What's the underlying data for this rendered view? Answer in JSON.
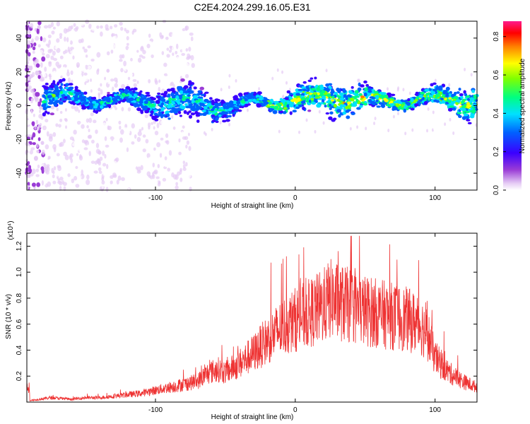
{
  "title": "C2E4.2024.299.16.05.E31",
  "chart_data": [
    {
      "type": "heatmap",
      "xlabel": "Height of straight line (km)",
      "ylabel": "Frequency (Hz)",
      "xlim": [
        -192,
        130
      ],
      "ylim": [
        -50,
        50
      ],
      "xticks": [
        -100,
        0,
        100
      ],
      "yticks": [
        -40,
        -20,
        0,
        20,
        40
      ],
      "colorbar": {
        "label": "Normalized spectral amplitude",
        "range": [
          0,
          0.88
        ],
        "ticks": [
          "0.0",
          "0.2",
          "0.4",
          "0.6",
          "0.8"
        ],
        "colormap": "rainbow (white-purple-blue-cyan-green-yellow-red-magenta)"
      },
      "description_trace": {
        "x": [
          -175,
          -150,
          -125,
          -100,
          -75,
          -50,
          -25,
          0,
          25,
          50,
          75,
          100,
          125
        ],
        "center_freq": [
          5,
          4,
          3,
          2,
          1,
          -1,
          2,
          3,
          5,
          3,
          3,
          4,
          3
        ]
      }
    },
    {
      "type": "line",
      "xlabel": "Height of straight line (km)",
      "ylabel": "SNR (10 * v/v)",
      "y_multiplier": "(x10⁴)",
      "xlim": [
        -192,
        130
      ],
      "ylim": [
        0,
        1.3
      ],
      "xticks": [
        -100,
        0,
        100
      ],
      "yticks": [
        "0.2",
        "0.4",
        "0.6",
        "0.8",
        "1.0",
        "1.2"
      ],
      "series": [
        {
          "color": "#ee3333",
          "x": [
            -190,
            -175,
            -160,
            -150,
            -140,
            -130,
            -120,
            -110,
            -100,
            -90,
            -80,
            -70,
            -62,
            -55,
            -50,
            -40,
            -30,
            -20,
            -10,
            0,
            10,
            20,
            25,
            30,
            40,
            50,
            60,
            70,
            80,
            90,
            95,
            100,
            110,
            120,
            130
          ],
          "y": [
            0.01,
            0.03,
            0.02,
            0.03,
            0.03,
            0.04,
            0.05,
            0.06,
            0.08,
            0.1,
            0.12,
            0.14,
            0.2,
            0.22,
            0.2,
            0.26,
            0.33,
            0.42,
            0.5,
            0.56,
            0.6,
            0.65,
            0.7,
            0.68,
            0.65,
            0.62,
            0.6,
            0.58,
            0.56,
            0.52,
            0.45,
            0.3,
            0.2,
            0.14,
            0.1
          ]
        }
      ]
    }
  ]
}
